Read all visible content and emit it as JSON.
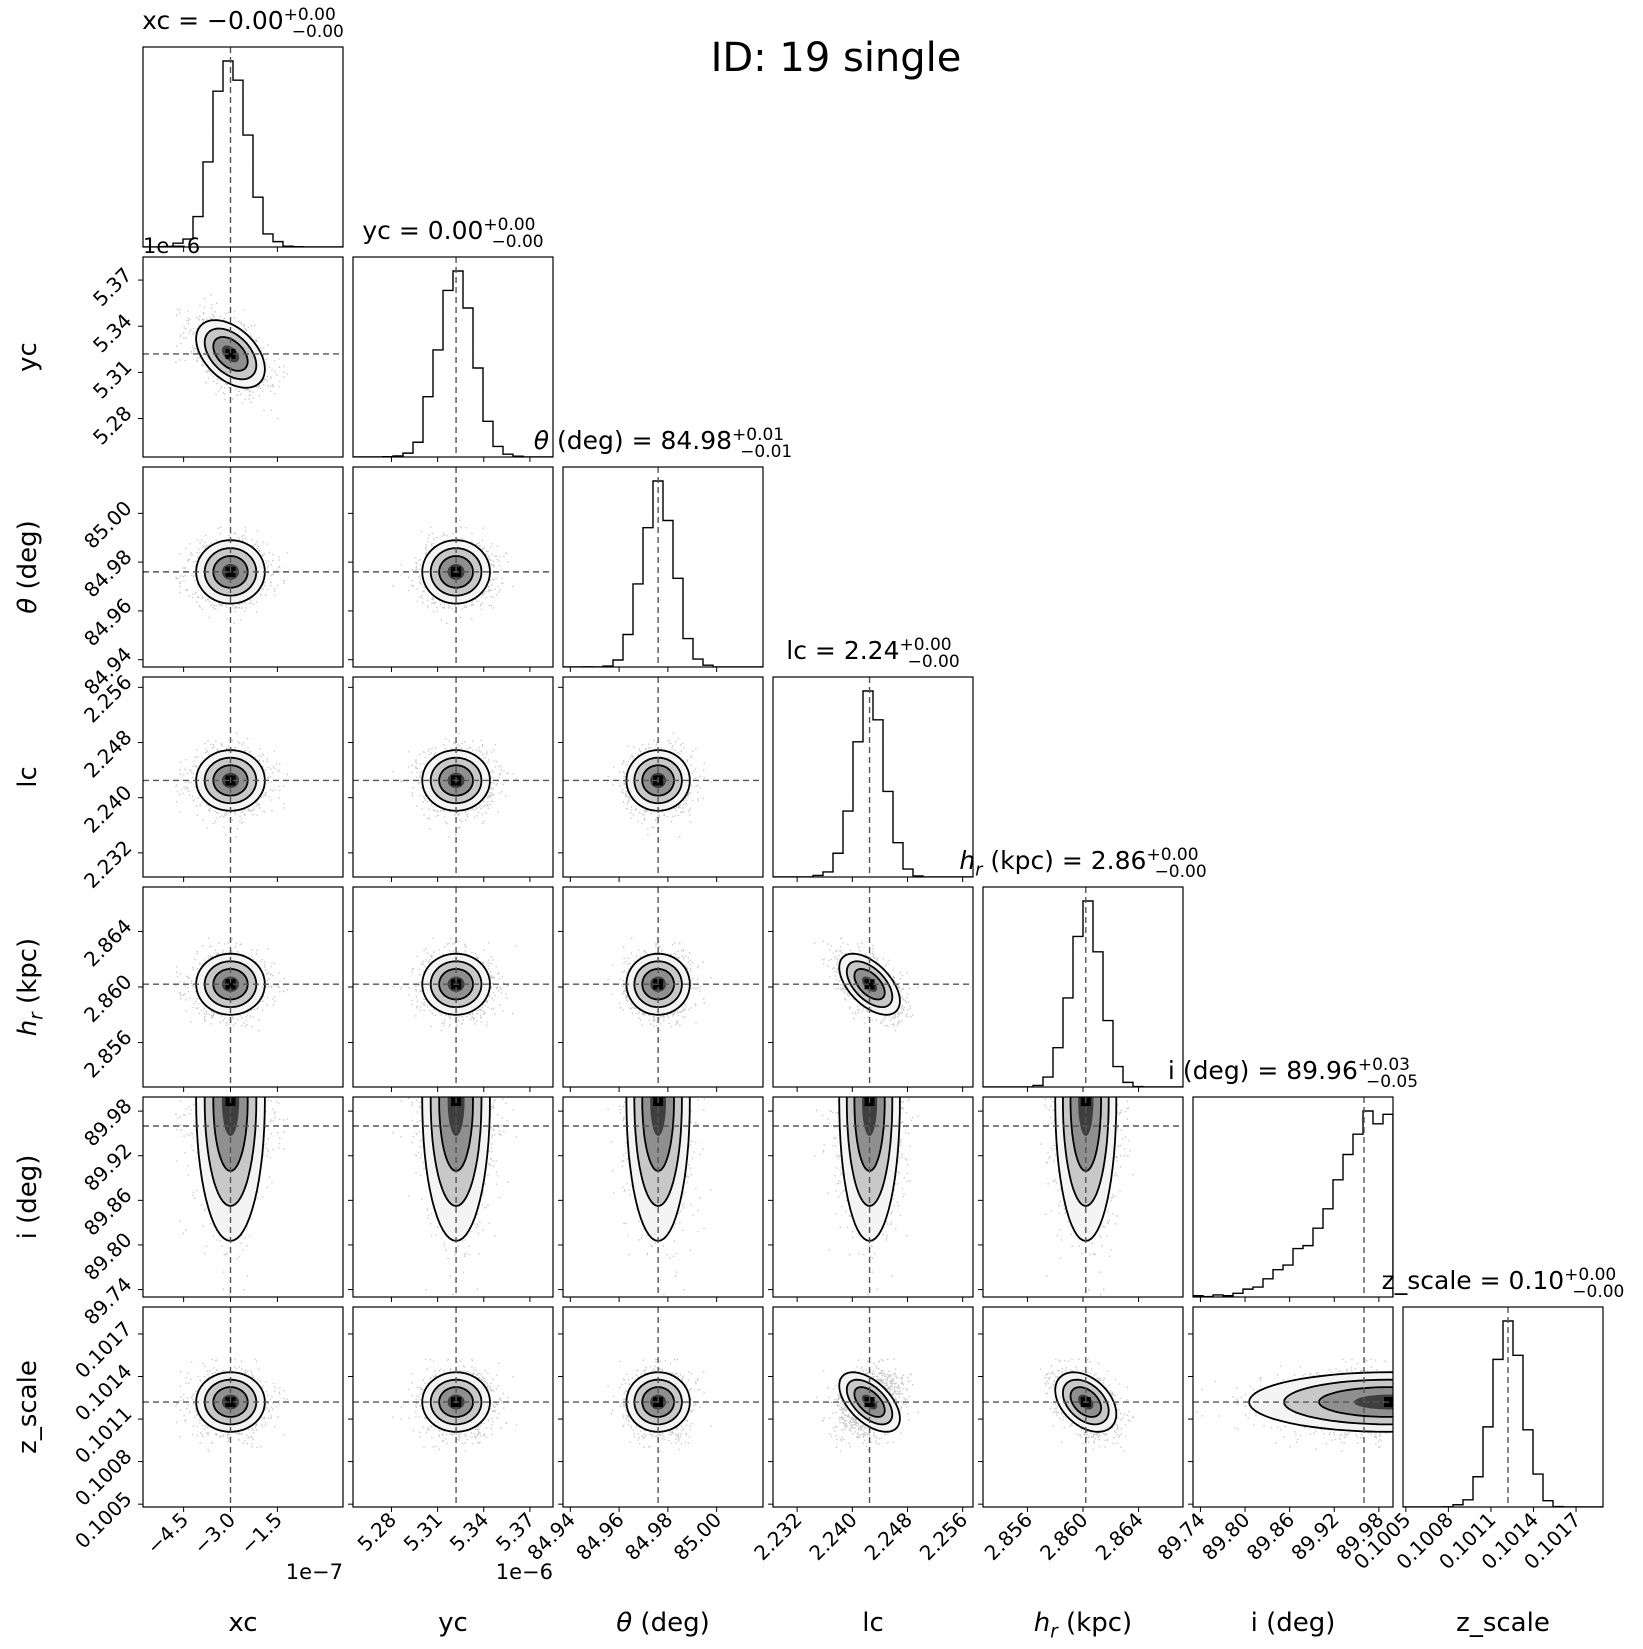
{
  "figure": {
    "title": "ID: 19  single"
  },
  "chart_data": {
    "type": "corner",
    "title": "ID: 19  single",
    "params": [
      {
        "label": "xc",
        "title": "xc = −0.00",
        "sup": "+0.00",
        "sub": "−0.00",
        "range": [
          -5.8e-07,
          6e-08
        ],
        "ticks": [
          -4.5e-07,
          -3e-07,
          -1.5e-07
        ],
        "ticklabels": [
          "−4.5",
          "−3.0",
          "−1.5"
        ],
        "offset": "1e−7",
        "median": -3e-07,
        "sigma": 5.5e-08,
        "skew": 0
      },
      {
        "label": "yc",
        "title": "yc = 0.00",
        "sup": "+0.00",
        "sub": "−0.00",
        "range": [
          5.255e-06,
          5.385e-06
        ],
        "ticks": [
          5.28e-06,
          5.31e-06,
          5.34e-06,
          5.37e-06
        ],
        "ticklabels": [
          "5.28",
          "5.31",
          "5.34",
          "5.37"
        ],
        "offset": "1e−6",
        "median": 5.322e-06,
        "sigma": 1.1e-08,
        "skew": 0
      },
      {
        "label": "θ (deg)",
        "title": "θ (deg) = 84.98",
        "sup": "+0.01",
        "sub": "−0.01",
        "range": [
          84.937,
          85.019
        ],
        "ticks": [
          84.94,
          84.96,
          84.98,
          85.0
        ],
        "ticklabels": [
          "84.94",
          "84.96",
          "84.98",
          "85.00"
        ],
        "median": 84.976,
        "sigma": 0.0065,
        "skew": 0
      },
      {
        "label": "lc",
        "title": "lc = 2.24",
        "sup": "+0.00",
        "sub": "−0.00",
        "range": [
          2.2285,
          2.2575
        ],
        "ticks": [
          2.232,
          2.24,
          2.248,
          2.256
        ],
        "ticklabels": [
          "2.232",
          "2.240",
          "2.248",
          "2.256"
        ],
        "median": 2.2425,
        "sigma": 0.0022,
        "skew": 0
      },
      {
        "label": "h_r (kpc)",
        "title": "h_r (kpc) = 2.86",
        "sup": "+0.00",
        "sub": "−0.00",
        "range": [
          2.8528,
          2.8672
        ],
        "ticks": [
          2.856,
          2.86,
          2.864
        ],
        "ticklabels": [
          "2.856",
          "2.860",
          "2.864"
        ],
        "median": 2.8602,
        "sigma": 0.0011,
        "skew": 0
      },
      {
        "label": "i (deg)",
        "title": "i (deg) = 89.96",
        "sup": "+0.03",
        "sub": "−0.05",
        "range": [
          89.73,
          89.999
        ],
        "ticks": [
          89.74,
          89.8,
          89.86,
          89.92,
          89.98
        ],
        "ticklabels": [
          "89.74",
          "89.80",
          "89.86",
          "89.92",
          "89.98"
        ],
        "median": 89.96,
        "sigma": 0.05,
        "skew": 1
      },
      {
        "label": "z_scale",
        "title": "z_scale = 0.10",
        "sup": "+0.00",
        "sub": "−0.00",
        "range": [
          0.10048,
          0.10189
        ],
        "ticks": [
          0.1005,
          0.1008,
          0.1011,
          0.1014,
          0.1017
        ],
        "ticklabels": [
          "0.1005",
          "0.1008",
          "0.1011",
          "0.1014",
          "0.1017"
        ],
        "median": 0.10122,
        "sigma": 0.000105,
        "skew": 0
      }
    ],
    "correlations": [
      [
        1,
        -0.45,
        0,
        0,
        0,
        0,
        0
      ],
      [
        -0.45,
        1,
        0,
        0,
        0,
        0,
        0
      ],
      [
        0,
        0,
        1,
        0,
        0,
        0,
        0
      ],
      [
        0,
        0,
        0,
        1,
        -0.55,
        0,
        -0.55
      ],
      [
        0,
        0,
        0,
        -0.55,
        1,
        0,
        -0.4
      ],
      [
        0,
        0,
        0,
        0,
        0,
        1,
        0
      ],
      [
        0,
        0,
        0,
        -0.55,
        -0.4,
        0,
        1
      ]
    ]
  }
}
